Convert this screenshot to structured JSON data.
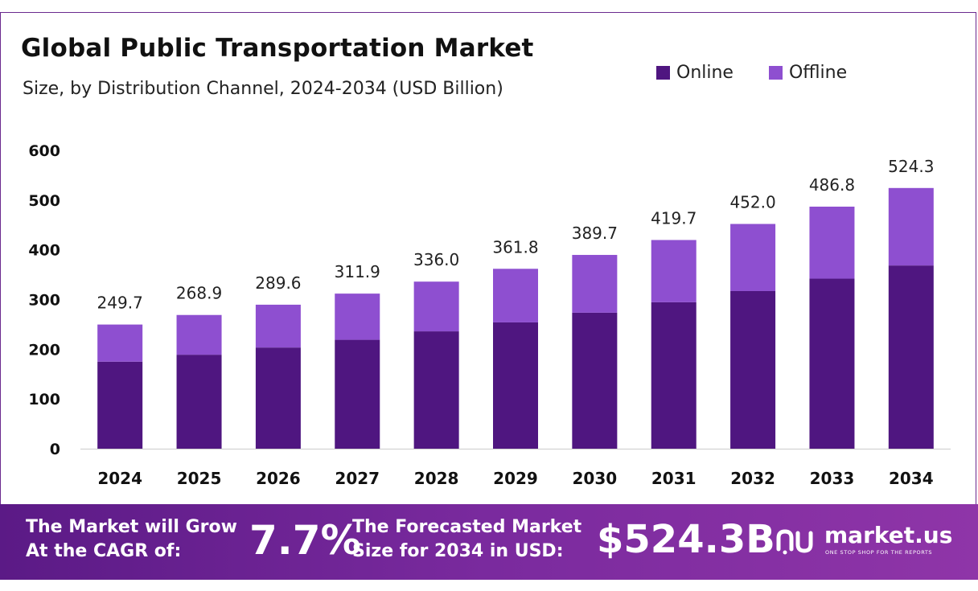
{
  "header": {
    "title": "Global Public Transportation Market",
    "subtitle": "Size, by Distribution Channel, 2024-2034 (USD Billion)"
  },
  "colors": {
    "online": "#4f1680",
    "offline": "#8e4fd0",
    "axis": "#cccccc",
    "banner_start": "#5b1a86",
    "banner_end": "#8f35a8"
  },
  "legend": {
    "items": [
      {
        "label": "Online",
        "color": "#4f1680"
      },
      {
        "label": "Offline",
        "color": "#8e4fd0"
      }
    ]
  },
  "chart_data": {
    "type": "bar",
    "stacked": true,
    "title": "Global Public Transportation Market",
    "subtitle": "Size, by Distribution Channel, 2024-2034 (USD Billion)",
    "xlabel": "",
    "ylabel": "",
    "ylim": [
      0,
      600
    ],
    "yticks": [
      0,
      100,
      200,
      300,
      400,
      500,
      600
    ],
    "grid": false,
    "legend_position": "top-right",
    "categories": [
      "2024",
      "2025",
      "2026",
      "2027",
      "2028",
      "2029",
      "2030",
      "2031",
      "2032",
      "2033",
      "2034"
    ],
    "series": [
      {
        "name": "Online",
        "values": [
          175.0,
          189.0,
          203.5,
          219.0,
          236.0,
          254.0,
          273.5,
          294.5,
          317.0,
          342.0,
          368.5
        ]
      },
      {
        "name": "Offline",
        "values": [
          74.7,
          79.9,
          86.1,
          92.9,
          100.0,
          107.8,
          116.2,
          125.2,
          135.0,
          144.8,
          155.8
        ]
      }
    ],
    "totals": [
      "249.7",
      "268.9",
      "289.6",
      "311.9",
      "336.0",
      "361.8",
      "389.7",
      "419.7",
      "452.0",
      "486.8",
      "524.3"
    ]
  },
  "banner": {
    "cagr_label_line1": "The Market will Grow",
    "cagr_label_line2": "At the CAGR of:",
    "cagr_value": "7.7%",
    "forecast_label_line1": "The Forecasted Market",
    "forecast_label_line2": "Size for 2034 in USD:",
    "forecast_value": "$524.3B",
    "logo_name": "market.us",
    "logo_tagline": "ONE STOP SHOP FOR THE REPORTS",
    "logo_icon": "market-us-logo-icon"
  }
}
